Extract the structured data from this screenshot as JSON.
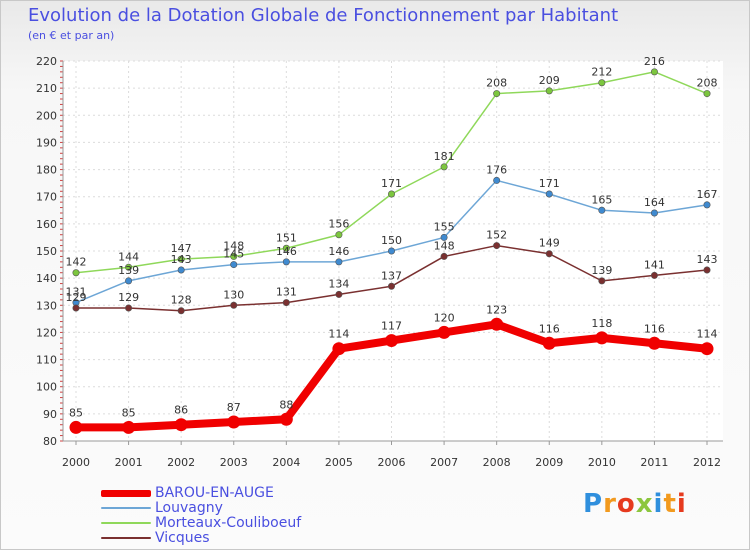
{
  "chart_data": {
    "type": "line",
    "title": "Evolution de la Dotation Globale de Fonctionnement par Habitant",
    "subtitle": "(en € et par an)",
    "xlabel": "",
    "ylabel": "",
    "x": [
      "2000",
      "2001",
      "2002",
      "2003",
      "2004",
      "2005",
      "2006",
      "2007",
      "2008",
      "2009",
      "2010",
      "2011",
      "2012"
    ],
    "ylim": [
      80,
      220
    ],
    "yticks": [
      80,
      90,
      100,
      110,
      120,
      130,
      140,
      150,
      160,
      170,
      180,
      190,
      200,
      210,
      220
    ],
    "grid": true,
    "series": [
      {
        "name": "Morteaux-Couliboeuf",
        "color": "#8fd85a",
        "marker": "#7cc63e",
        "emphasis": false,
        "values": [
          142,
          144,
          147,
          148,
          151,
          156,
          171,
          181,
          208,
          209,
          212,
          216,
          208
        ]
      },
      {
        "name": "Louvagny",
        "color": "#6da6d6",
        "marker": "#3f8ad0",
        "emphasis": false,
        "values": [
          131,
          139,
          143,
          145,
          146,
          146,
          150,
          155,
          176,
          171,
          165,
          164,
          167
        ]
      },
      {
        "name": "Vicques",
        "color": "#7a3030",
        "marker": "#7a3030",
        "emphasis": false,
        "values": [
          129,
          129,
          128,
          130,
          131,
          134,
          137,
          148,
          152,
          149,
          139,
          141,
          143
        ]
      },
      {
        "name": "BAROU-EN-AUGE",
        "color": "#f00000",
        "marker": "#f00000",
        "emphasis": true,
        "values": [
          85,
          85,
          86,
          87,
          88,
          114,
          117,
          120,
          123,
          116,
          118,
          116,
          114
        ]
      }
    ],
    "legend_order": [
      "BAROU-EN-AUGE",
      "Louvagny",
      "Morteaux-Couliboeuf",
      "Vicques"
    ]
  },
  "branding": {
    "logo_text": "Proxiti"
  }
}
